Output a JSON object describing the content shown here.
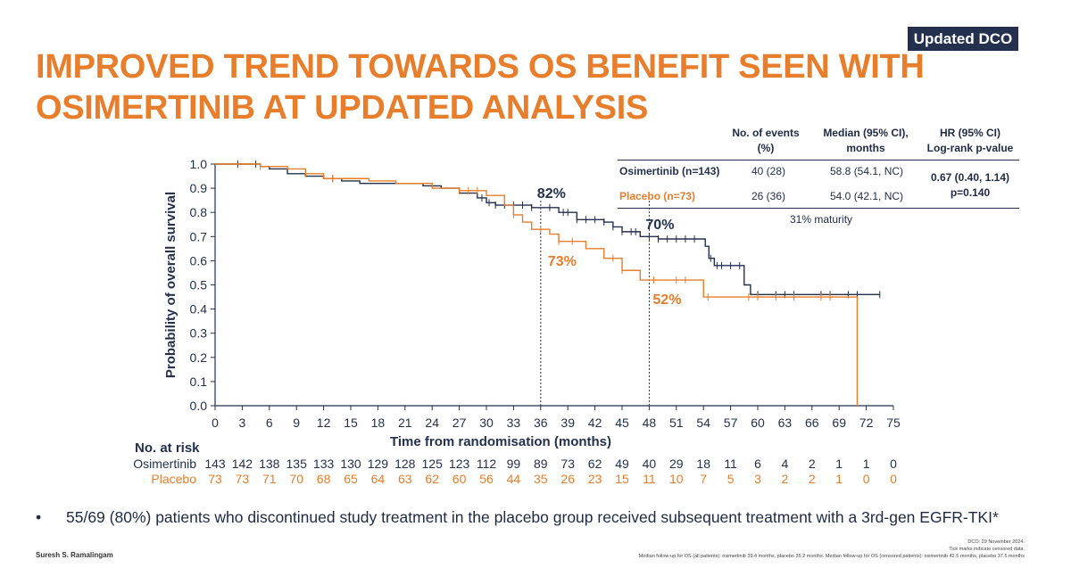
{
  "badge": "Updated DCO",
  "title_lines": [
    "IMPROVED TREND TOWARDS OS BENEFIT SEEN WITH",
    "OSIMERTINIB AT UPDATED ANALYSIS"
  ],
  "stats_table": {
    "headers": {
      "events": [
        "No. of events",
        "(%)"
      ],
      "median": [
        "Median (95% CI),",
        "months"
      ],
      "hr": [
        "HR (95% CI)",
        "Log-rank p-value"
      ]
    },
    "rows": [
      {
        "arm": "Osimertinib (n=143)",
        "events": "40 (28)",
        "median": "58.8 (54.1, NC)",
        "color": "#23314f"
      },
      {
        "arm": "Placebo (n=73)",
        "events": "26 (36)",
        "median": "54.0 (42.1, NC)",
        "color": "#e87d2b"
      }
    ],
    "hr_value": "0.67 (0.40, 1.14)",
    "p_value": "p=0.140",
    "maturity": "31% maturity"
  },
  "chart_data": {
    "type": "line",
    "ylabel": "Probability of overall survival",
    "xlabel": "Time from randomisation (months)",
    "xlim": [
      0,
      75
    ],
    "ylim": [
      0,
      1
    ],
    "x_ticks": [
      0,
      3,
      6,
      9,
      12,
      15,
      18,
      21,
      24,
      27,
      30,
      33,
      36,
      39,
      42,
      45,
      48,
      51,
      54,
      57,
      60,
      63,
      66,
      69,
      72,
      75
    ],
    "y_ticks": [
      "0.0",
      "0.1",
      "0.2",
      "0.3",
      "0.4",
      "0.5",
      "0.6",
      "0.7",
      "0.8",
      "0.9",
      "1.0"
    ],
    "series": [
      {
        "name": "Osimertinib",
        "color": "#23314f",
        "steps": [
          [
            0,
            1.0
          ],
          [
            2,
            1.0
          ],
          [
            5,
            0.99
          ],
          [
            6,
            0.98
          ],
          [
            8,
            0.96
          ],
          [
            10,
            0.95
          ],
          [
            12,
            0.94
          ],
          [
            14,
            0.93
          ],
          [
            16,
            0.92
          ],
          [
            20,
            0.92
          ],
          [
            23,
            0.91
          ],
          [
            25,
            0.9
          ],
          [
            27,
            0.88
          ],
          [
            29,
            0.86
          ],
          [
            30,
            0.84
          ],
          [
            31,
            0.83
          ],
          [
            35,
            0.82
          ],
          [
            38,
            0.8
          ],
          [
            40,
            0.77
          ],
          [
            43,
            0.76
          ],
          [
            44,
            0.74
          ],
          [
            45,
            0.72
          ],
          [
            47,
            0.7
          ],
          [
            49,
            0.69
          ],
          [
            53.5,
            0.69
          ],
          [
            54.2,
            0.66
          ],
          [
            54.6,
            0.61
          ],
          [
            55.2,
            0.58
          ],
          [
            58.5,
            0.5
          ],
          [
            59.2,
            0.46
          ],
          [
            73.5,
            0.46
          ]
        ],
        "censor_x": [
          2.5,
          4.5,
          13,
          29.5,
          30.3,
          31,
          32,
          33,
          34,
          35,
          37,
          38.5,
          39,
          40,
          41,
          42,
          43,
          44,
          45,
          46,
          46.5,
          48,
          49,
          50,
          51,
          52,
          53,
          54.8,
          55.5,
          56,
          57,
          58,
          60,
          62,
          63,
          64,
          67,
          68,
          70,
          71,
          73.5
        ]
      },
      {
        "name": "Placebo",
        "color": "#e87d2b",
        "steps": [
          [
            0,
            1.0
          ],
          [
            5,
            0.99
          ],
          [
            8,
            0.98
          ],
          [
            10,
            0.96
          ],
          [
            12,
            0.94
          ],
          [
            17,
            0.93
          ],
          [
            20,
            0.92
          ],
          [
            24,
            0.9
          ],
          [
            27,
            0.89
          ],
          [
            30,
            0.87
          ],
          [
            32,
            0.83
          ],
          [
            33,
            0.79
          ],
          [
            34,
            0.76
          ],
          [
            35,
            0.73
          ],
          [
            37,
            0.71
          ],
          [
            38,
            0.68
          ],
          [
            41,
            0.65
          ],
          [
            43,
            0.61
          ],
          [
            45,
            0.56
          ],
          [
            47,
            0.52
          ],
          [
            53,
            0.52
          ],
          [
            54,
            0.45
          ],
          [
            71,
            0.45
          ],
          [
            71,
            0.0
          ]
        ],
        "censor_x": [
          5,
          10,
          13,
          27,
          28,
          29,
          33,
          36,
          38,
          39.5,
          44,
          45,
          48.5,
          51,
          52,
          54.5,
          59,
          60,
          62,
          64,
          67,
          68
        ]
      }
    ],
    "reference_lines": [
      {
        "x": 36,
        "osimertinib_label": "82%",
        "placebo_label": "73%"
      },
      {
        "x": 48,
        "osimertinib_label": "70%",
        "placebo_label": "52%"
      }
    ],
    "at_risk": {
      "title": "No. at risk",
      "rows": [
        {
          "name": "Osimertinib",
          "color": "#23314f",
          "values": [
            "143",
            "142",
            "138",
            "135",
            "133",
            "130",
            "129",
            "128",
            "125",
            "123",
            "112",
            "99",
            "89",
            "73",
            "62",
            "49",
            "40",
            "29",
            "18",
            "11",
            "6",
            "4",
            "2",
            "1",
            "1",
            "0"
          ]
        },
        {
          "name": "Placebo",
          "color": "#e87d2b",
          "values": [
            "73",
            "73",
            "71",
            "70",
            "68",
            "65",
            "64",
            "63",
            "62",
            "60",
            "56",
            "44",
            "35",
            "26",
            "23",
            "15",
            "11",
            "10",
            "7",
            "5",
            "3",
            "2",
            "2",
            "1",
            "0",
            "0"
          ]
        }
      ]
    }
  },
  "bullet": {
    "marker": "•",
    "text": "55/69 (80%) patients who discontinued study treatment in the placebo group received subsequent treatment with a 3rd-gen EGFR-TKI*"
  },
  "author": "Suresh S. Ramalingam",
  "footnotes": [
    "DCO: 29 November 2024.",
    "Tick marks indicate censored data.",
    "Median follow-up for OS (all patients): osimertinib 39.4 months, placebo 35.2 months. Median follow-up for OS (censored patients): osimertinib 42.5 months, placebo 37.5 months"
  ]
}
